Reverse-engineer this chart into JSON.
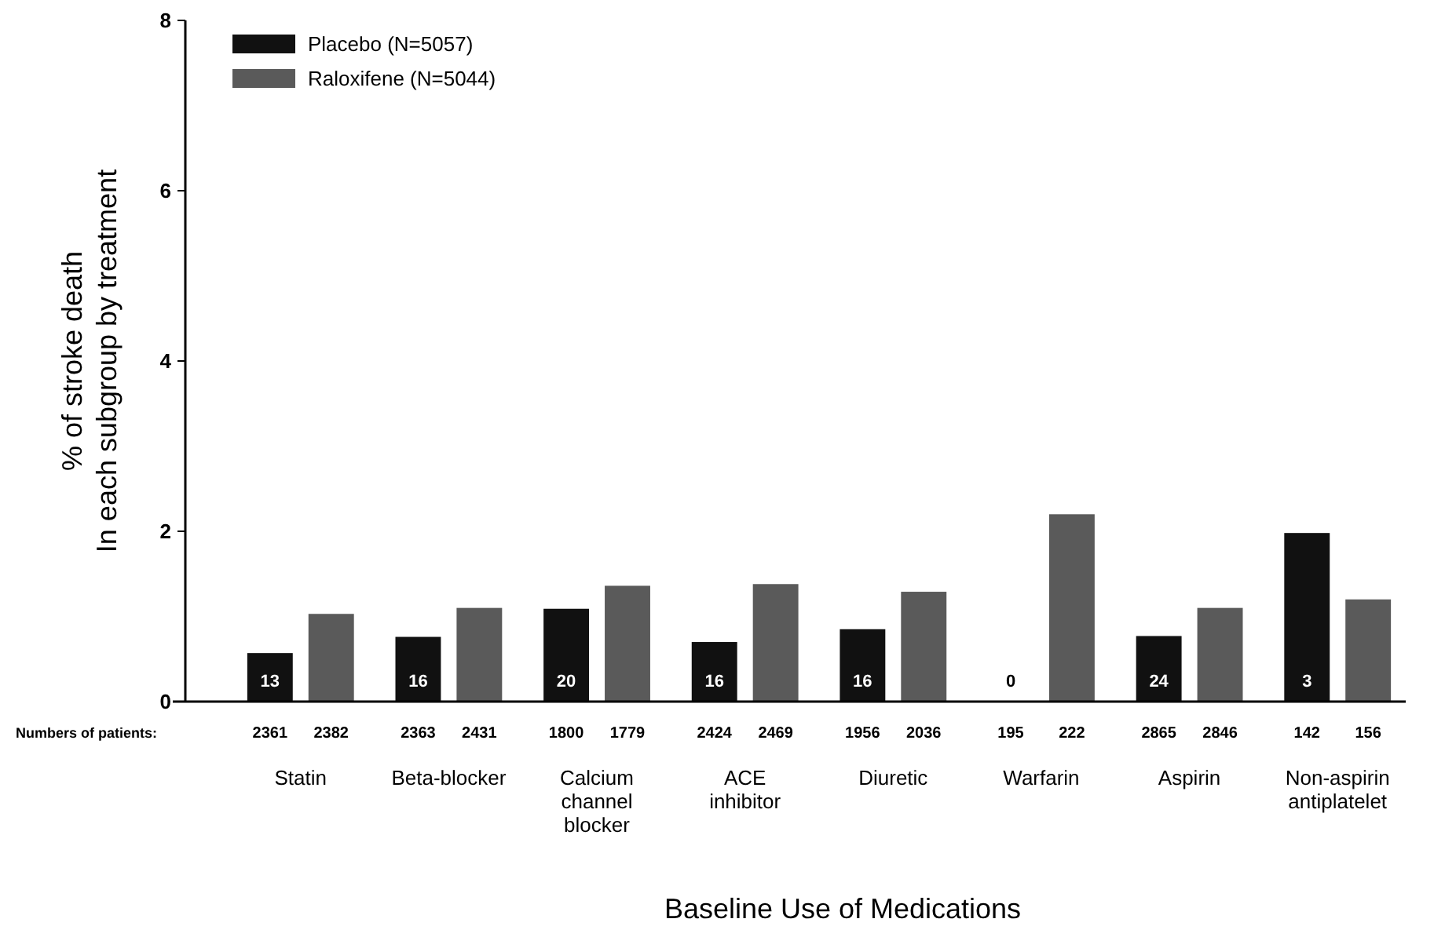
{
  "chart_data": {
    "type": "bar",
    "xlabel": "Baseline Use of Medications",
    "ylabel": "% of stroke death\nIn each subgroup by treatment",
    "categories": [
      "Statin",
      "Beta-blocker",
      "Calcium channel blocker",
      "ACE inhibitor",
      "Diuretic",
      "Warfarin",
      "Aspirin",
      "Non-aspirin antiplatelet"
    ],
    "series": [
      {
        "name": "Placebo (N=5057)",
        "color": "#111111",
        "values": [
          0.57,
          0.76,
          1.09,
          0.7,
          0.85,
          0,
          0.77,
          1.98
        ]
      },
      {
        "name": "Raloxifene (N=5044)",
        "color": "#5a5a5a",
        "values": [
          1.03,
          1.1,
          1.36,
          1.38,
          1.29,
          2.2,
          1.1,
          1.2
        ]
      }
    ],
    "ylim": [
      0,
      8
    ],
    "yticks": [
      0,
      2,
      4,
      6,
      8
    ],
    "grid": false,
    "legend": "top left",
    "annotations": [
      "Numbers of patients:",
      "2361",
      "2382",
      "2363",
      "2431",
      "1800",
      "1779",
      "2424",
      "2469",
      "1956",
      "2036",
      "195",
      "222",
      "2865",
      "2846",
      "142",
      "156",
      {
        "text": "13",
        "x": "Statin",
        "y": 0.1
      },
      {
        "text": "16",
        "x": "Beta-blocker",
        "y": 0.1
      },
      {
        "text": "20",
        "x": "Calcium channel blocker",
        "y": 0.1
      },
      {
        "text": "16",
        "x": "ACE inhibitor",
        "y": 0.1
      },
      {
        "text": "16",
        "x": "Diuretic",
        "y": 0.1
      },
      {
        "text": "0",
        "x": "Warfarin",
        "y": 0.1
      },
      {
        "text": "24",
        "x": "Aspirin",
        "y": 0.1
      },
      {
        "text": "3",
        "x": "Non-aspirin antiplatelet",
        "y": 0.1
      }
    ]
  }
}
